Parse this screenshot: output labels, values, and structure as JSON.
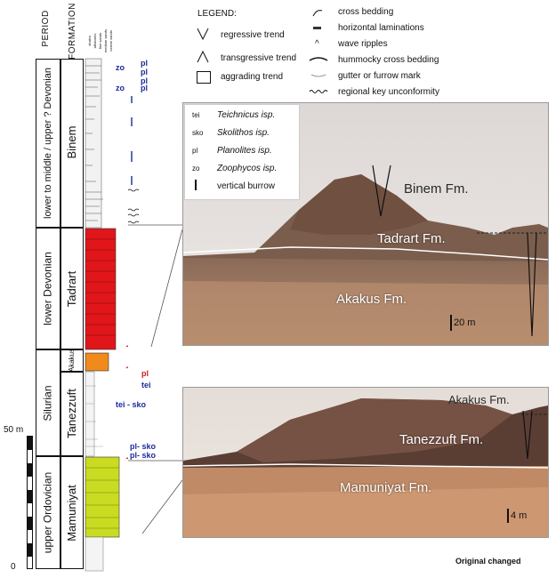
{
  "headers": {
    "period": "PERIOD",
    "formation": "FORMATION"
  },
  "grain_sizes": [
    "shales",
    "siltstones",
    "fine sands",
    "medium sands",
    "coarse sands"
  ],
  "periods": [
    {
      "label": "lower to middle / upper ? Devonian"
    },
    {
      "label": "lower Devonian"
    },
    {
      "label": "Silurian"
    },
    {
      "label": "upper Ordovician"
    }
  ],
  "formations": [
    {
      "label": "Binem"
    },
    {
      "label": "Tadrart"
    },
    {
      "label": "Akakus"
    },
    {
      "label": "Tanezzuft"
    },
    {
      "label": "Mamuniyat"
    }
  ],
  "scale": {
    "top": "50 m",
    "bottom": "0"
  },
  "trace_labels": [
    {
      "text": "zo"
    },
    {
      "text": "pl"
    },
    {
      "text": "pl"
    },
    {
      "text": "pl"
    },
    {
      "text": "zo"
    },
    {
      "text": "pl"
    },
    {
      "text": "pl"
    },
    {
      "text": "tei"
    },
    {
      "text": "tei - sko"
    },
    {
      "text": "pl- sko"
    },
    {
      "text": "pl- sko"
    }
  ],
  "legend": {
    "title": "LEGEND:",
    "left": [
      "regressive trend",
      "transgressive trend",
      "aggrading trend"
    ],
    "right": [
      "cross bedding",
      "horizontal laminations",
      "wave ripples",
      "hummocky cross bedding",
      "gutter or furrow mark",
      "regional key unconformity"
    ]
  },
  "trace_legend": [
    {
      "code": "tei",
      "name": "Teichnicus isp."
    },
    {
      "code": "sko",
      "name": "Skolithos isp."
    },
    {
      "code": "pl",
      "name": "Planolites isp."
    },
    {
      "code": "zo",
      "name": "Zoophycos isp."
    },
    {
      "code": "",
      "name": "vertical burrow"
    }
  ],
  "photo1": {
    "binem": "Binem Fm.",
    "tadrart": "Tadrart Fm.",
    "akakus": "Akakus Fm.",
    "scale": "20 m"
  },
  "photo2": {
    "akakus": "Akakus Fm.",
    "tanezzuft": "Tanezzuft Fm.",
    "mamuniyat": "Mamuniyat Fm.",
    "scale": "4 m"
  },
  "footer": "Original changed",
  "colors": {
    "tadrart": "#e0161a",
    "akakus": "#f08a1c",
    "mamuniyat": "#c9dc22"
  }
}
